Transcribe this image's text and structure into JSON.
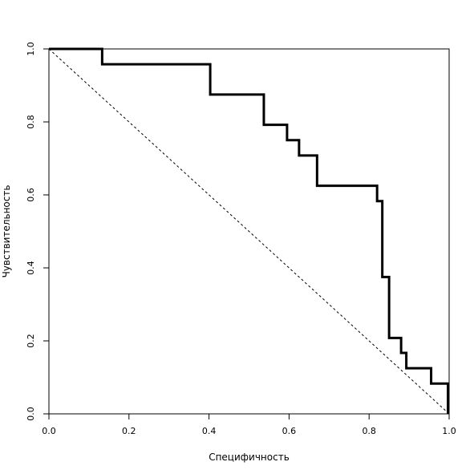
{
  "chart_data": {
    "type": "line",
    "title": "",
    "xlabel": "Специфичность",
    "ylabel": "Чувствительность",
    "xlim": [
      0,
      1
    ],
    "ylim": [
      0,
      1
    ],
    "grid": false,
    "legend": "none",
    "x_ticks": [
      "0.0",
      "0.2",
      "0.4",
      "0.6",
      "0.8",
      "1.0"
    ],
    "y_ticks": [
      "0.0",
      "0.2",
      "0.4",
      "0.6",
      "0.8",
      "1.0"
    ],
    "series": [
      {
        "style": "step",
        "color": "#000000",
        "points": [
          [
            0.0,
            1.0
          ],
          [
            0.133,
            1.0
          ],
          [
            0.133,
            0.958
          ],
          [
            0.403,
            0.958
          ],
          [
            0.403,
            0.875
          ],
          [
            0.537,
            0.875
          ],
          [
            0.537,
            0.792
          ],
          [
            0.595,
            0.792
          ],
          [
            0.595,
            0.75
          ],
          [
            0.625,
            0.75
          ],
          [
            0.625,
            0.708
          ],
          [
            0.67,
            0.708
          ],
          [
            0.67,
            0.625
          ],
          [
            0.82,
            0.625
          ],
          [
            0.82,
            0.583
          ],
          [
            0.833,
            0.583
          ],
          [
            0.833,
            0.375
          ],
          [
            0.85,
            0.375
          ],
          [
            0.85,
            0.208
          ],
          [
            0.88,
            0.208
          ],
          [
            0.88,
            0.167
          ],
          [
            0.893,
            0.167
          ],
          [
            0.893,
            0.125
          ],
          [
            0.955,
            0.125
          ],
          [
            0.955,
            0.083
          ],
          [
            0.997,
            0.083
          ],
          [
            0.997,
            0.0
          ]
        ]
      },
      {
        "style": "dashed",
        "color": "#000000",
        "points": [
          [
            0.0,
            1.0
          ],
          [
            1.0,
            0.0
          ]
        ]
      }
    ]
  }
}
